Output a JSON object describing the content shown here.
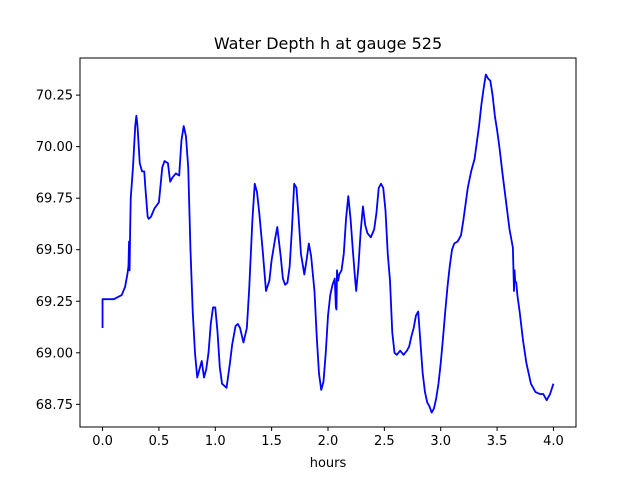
{
  "chart_data": {
    "type": "line",
    "title": "Water Depth h at gauge 525",
    "xlabel": "hours",
    "ylabel": "",
    "xlim": [
      -0.2,
      4.2
    ],
    "ylim": [
      68.64,
      70.43
    ],
    "xticks": [
      0.0,
      0.5,
      1.0,
      1.5,
      2.0,
      2.5,
      3.0,
      3.5,
      4.0
    ],
    "xtick_labels": [
      "0.0",
      "0.5",
      "1.0",
      "1.5",
      "2.0",
      "2.5",
      "3.0",
      "3.5",
      "4.0"
    ],
    "yticks": [
      68.75,
      69.0,
      69.25,
      69.5,
      69.75,
      70.0,
      70.25
    ],
    "ytick_labels": [
      "68.75",
      "69.00",
      "69.25",
      "69.50",
      "69.75",
      "70.00",
      "70.25"
    ],
    "grid": false,
    "colors": {
      "line": "#0000ff",
      "axes": "#000000",
      "background": "#ffffff"
    },
    "series": [
      {
        "x": [
          0.0,
          0.0,
          0.02,
          0.1,
          0.17,
          0.2,
          0.22,
          0.23,
          0.235,
          0.24,
          0.245,
          0.25,
          0.27,
          0.29,
          0.3,
          0.31,
          0.33,
          0.35,
          0.37,
          0.38,
          0.4,
          0.41,
          0.43,
          0.46,
          0.5,
          0.53,
          0.55,
          0.58,
          0.6,
          0.62,
          0.65,
          0.68,
          0.7,
          0.72,
          0.74,
          0.76,
          0.78,
          0.8,
          0.82,
          0.84,
          0.86,
          0.88,
          0.9,
          0.92,
          0.94,
          0.96,
          0.98,
          1.0,
          1.02,
          1.04,
          1.06,
          1.1,
          1.13,
          1.15,
          1.18,
          1.2,
          1.22,
          1.25,
          1.28,
          1.3,
          1.33,
          1.35,
          1.37,
          1.39,
          1.42,
          1.45,
          1.48,
          1.5,
          1.53,
          1.55,
          1.58,
          1.6,
          1.62,
          1.64,
          1.66,
          1.68,
          1.7,
          1.72,
          1.74,
          1.76,
          1.79,
          1.81,
          1.83,
          1.85,
          1.88,
          1.9,
          1.92,
          1.94,
          1.96,
          1.98,
          2.0,
          2.02,
          2.04,
          2.06,
          2.07,
          2.075,
          2.08,
          2.09,
          2.1,
          2.12,
          2.14,
          2.16,
          2.18,
          2.2,
          2.22,
          2.24,
          2.25,
          2.27,
          2.29,
          2.31,
          2.33,
          2.35,
          2.38,
          2.41,
          2.43,
          2.45,
          2.47,
          2.49,
          2.51,
          2.53,
          2.55,
          2.57,
          2.59,
          2.61,
          2.64,
          2.67,
          2.7,
          2.72,
          2.74,
          2.76,
          2.78,
          2.8,
          2.82,
          2.84,
          2.86,
          2.88,
          2.9,
          2.92,
          2.94,
          2.96,
          2.98,
          3.0,
          3.02,
          3.04,
          3.06,
          3.08,
          3.1,
          3.12,
          3.15,
          3.18,
          3.2,
          3.22,
          3.24,
          3.27,
          3.3,
          3.32,
          3.34,
          3.36,
          3.38,
          3.4,
          3.42,
          3.44,
          3.46,
          3.48,
          3.5,
          3.52,
          3.55,
          3.58,
          3.61,
          3.64,
          3.65,
          3.655,
          3.66,
          3.67,
          3.68,
          3.7,
          3.73,
          3.76,
          3.8,
          3.84,
          3.88,
          3.91,
          3.94,
          3.97,
          4.0
        ],
        "y": [
          69.12,
          69.26,
          69.26,
          69.26,
          69.28,
          69.32,
          69.38,
          69.42,
          69.54,
          69.4,
          69.6,
          69.75,
          69.9,
          70.1,
          70.15,
          70.1,
          69.92,
          69.88,
          69.88,
          69.8,
          69.66,
          69.65,
          69.66,
          69.7,
          69.73,
          69.9,
          69.93,
          69.92,
          69.83,
          69.85,
          69.87,
          69.86,
          70.03,
          70.1,
          70.05,
          69.9,
          69.5,
          69.2,
          69.0,
          68.88,
          68.92,
          68.96,
          68.88,
          68.92,
          69.0,
          69.14,
          69.22,
          69.22,
          69.1,
          68.93,
          68.85,
          68.83,
          68.95,
          69.04,
          69.13,
          69.14,
          69.12,
          69.05,
          69.12,
          69.3,
          69.65,
          69.82,
          69.78,
          69.68,
          69.5,
          69.3,
          69.35,
          69.45,
          69.55,
          69.61,
          69.47,
          69.36,
          69.33,
          69.34,
          69.42,
          69.6,
          69.82,
          69.8,
          69.65,
          69.48,
          69.38,
          69.45,
          69.53,
          69.47,
          69.3,
          69.08,
          68.9,
          68.82,
          68.86,
          69.0,
          69.18,
          69.28,
          69.33,
          69.36,
          69.22,
          69.21,
          69.4,
          69.35,
          69.38,
          69.4,
          69.48,
          69.65,
          69.76,
          69.65,
          69.5,
          69.36,
          69.3,
          69.42,
          69.59,
          69.71,
          69.62,
          69.58,
          69.56,
          69.6,
          69.68,
          69.8,
          69.82,
          69.8,
          69.69,
          69.48,
          69.35,
          69.1,
          69.0,
          68.99,
          69.01,
          68.99,
          69.01,
          69.03,
          69.08,
          69.12,
          69.18,
          69.2,
          69.05,
          68.9,
          68.81,
          68.76,
          68.74,
          68.71,
          68.73,
          68.78,
          68.85,
          68.95,
          69.07,
          69.2,
          69.32,
          69.42,
          69.5,
          69.53,
          69.54,
          69.57,
          69.64,
          69.72,
          69.8,
          69.88,
          69.94,
          70.02,
          70.1,
          70.2,
          70.28,
          70.35,
          70.33,
          70.32,
          70.25,
          70.15,
          70.08,
          70.0,
          69.86,
          69.73,
          69.6,
          69.51,
          69.3,
          69.4,
          69.35,
          69.34,
          69.28,
          69.2,
          69.06,
          68.95,
          68.85,
          68.81,
          68.8,
          68.8,
          68.77,
          68.8,
          68.85
        ]
      }
    ]
  }
}
